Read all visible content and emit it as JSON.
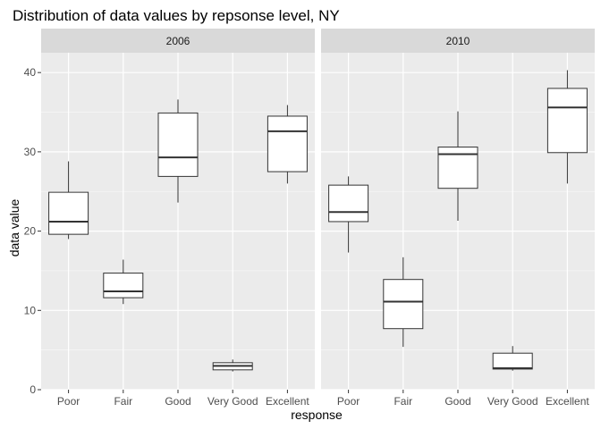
{
  "chart_data": {
    "type": "boxplot",
    "title": "Distribution of data values by repsonse level, NY",
    "xlabel": "response",
    "ylabel": "data value",
    "categories": [
      "Poor",
      "Fair",
      "Good",
      "Very Good",
      "Excellent"
    ],
    "ylim": [
      0,
      42.5
    ],
    "yticks": [
      0,
      10,
      20,
      30,
      40
    ],
    "grid": true,
    "legend": "none",
    "colors": {
      "panel_bg": "#ebebeb",
      "strip_bg": "#d9d9d9",
      "grid_major": "#ffffff",
      "box_fill": "#ffffff",
      "box_stroke": "#333333"
    },
    "panels": [
      {
        "label": "2006",
        "boxes": [
          {
            "category": "Poor",
            "min": 19.0,
            "q1": 19.6,
            "median": 21.2,
            "q3": 24.9,
            "max": 28.8
          },
          {
            "category": "Fair",
            "min": 10.8,
            "q1": 11.6,
            "median": 12.4,
            "q3": 14.7,
            "max": 16.4
          },
          {
            "category": "Good",
            "min": 23.6,
            "q1": 26.9,
            "median": 29.3,
            "q3": 34.9,
            "max": 36.6
          },
          {
            "category": "Very Good",
            "min": 2.3,
            "q1": 2.5,
            "median": 3.0,
            "q3": 3.4,
            "max": 3.8
          },
          {
            "category": "Excellent",
            "min": 26.0,
            "q1": 27.5,
            "median": 32.6,
            "q3": 34.5,
            "max": 35.9
          }
        ]
      },
      {
        "label": "2010",
        "boxes": [
          {
            "category": "Poor",
            "min": 17.3,
            "q1": 21.2,
            "median": 22.4,
            "q3": 25.8,
            "max": 26.9
          },
          {
            "category": "Fair",
            "min": 5.4,
            "q1": 7.7,
            "median": 11.1,
            "q3": 13.9,
            "max": 16.7
          },
          {
            "category": "Good",
            "min": 21.3,
            "q1": 25.4,
            "median": 29.7,
            "q3": 30.6,
            "max": 35.1
          },
          {
            "category": "Very Good",
            "min": 2.4,
            "q1": 2.6,
            "median": 2.7,
            "q3": 4.6,
            "max": 5.5
          },
          {
            "category": "Excellent",
            "min": 26.0,
            "q1": 29.9,
            "median": 35.6,
            "q3": 38.0,
            "max": 40.3
          }
        ]
      }
    ]
  }
}
